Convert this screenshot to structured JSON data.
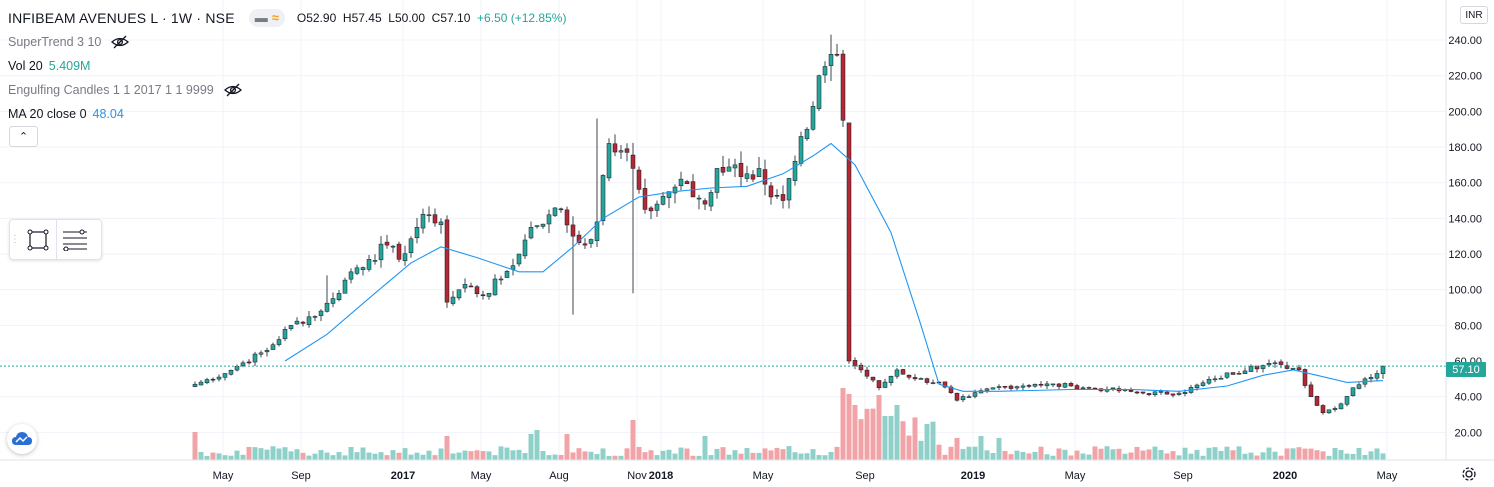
{
  "legend": {
    "symbol": "INFIBEAM AVENUES L · 1W · NSE",
    "ohlc": {
      "open": "O52.90",
      "high": "H57.45",
      "low": "L50.00",
      "close": "C57.10",
      "change": "+6.50 (+12.85%)"
    },
    "indicators": [
      {
        "name": "SuperTrend 3 10",
        "value": "",
        "hidden": true
      },
      {
        "name": "Vol 20",
        "value": "5.409M",
        "hidden": false
      },
      {
        "name": "Engulfing Candles 1 1 2017 1 1 9999",
        "value": "",
        "hidden": true
      },
      {
        "name": "MA 20 close 0",
        "value": "48.04",
        "hidden": false
      }
    ]
  },
  "currency": "INR",
  "last_price_label": "57.10",
  "colors": {
    "up": "#26a69a",
    "down": "#b22833",
    "vol_up": "#8fd1c9",
    "vol_down": "#f2a3a7",
    "ma": "#2196f3",
    "grid": "#f0f3fa",
    "axis_text": "#131722"
  },
  "icons": {
    "eye_off": "eye-off-icon",
    "collapse": "chevron-up-icon",
    "rectangle_tool": "rectangle-icon",
    "lines_tool": "fib-lines-icon",
    "logo": "tradingview-cloud-icon",
    "settings": "gear-icon"
  },
  "chart_data": {
    "type": "candlestick",
    "interval": "1W",
    "y_axis": {
      "min": 0,
      "max": 250,
      "ticks": [
        20,
        40,
        60,
        80,
        100,
        120,
        140,
        160,
        180,
        200,
        220,
        240
      ],
      "labels": [
        "20.00",
        "40.00",
        "60.00",
        "80.00",
        "100.00",
        "120.00",
        "140.00",
        "160.00",
        "180.00",
        "200.00",
        "220.00",
        "240.00"
      ]
    },
    "x_axis": {
      "start_week": 0,
      "end_week": 212,
      "ticks": [
        {
          "week": 1,
          "label": "May"
        },
        {
          "week": 14,
          "label": "Sep"
        },
        {
          "week": 31,
          "label": "2017"
        },
        {
          "week": 44,
          "label": "May"
        },
        {
          "week": 57,
          "label": "Aug"
        },
        {
          "week": 70,
          "label": "Nov"
        },
        {
          "week": 74,
          "label": "2018"
        },
        {
          "week": 91,
          "label": "May"
        },
        {
          "week": 108,
          "label": "Sep"
        },
        {
          "week": 126,
          "label": "2019"
        },
        {
          "week": 143,
          "label": "May"
        },
        {
          "week": 161,
          "label": "Sep"
        },
        {
          "week": 178,
          "label": "2020"
        },
        {
          "week": 195,
          "label": "May"
        }
      ]
    },
    "price_anchors": [
      {
        "week": 0,
        "close": 47
      },
      {
        "week": 5,
        "close": 53
      },
      {
        "week": 8,
        "close": 59
      },
      {
        "week": 12,
        "close": 66
      },
      {
        "week": 16,
        "close": 80
      },
      {
        "week": 21,
        "close": 88
      },
      {
        "week": 23,
        "close": 95
      },
      {
        "week": 26,
        "close": 110
      },
      {
        "week": 29,
        "close": 117
      },
      {
        "week": 32,
        "close": 125
      },
      {
        "week": 34,
        "close": 117
      },
      {
        "week": 37,
        "close": 135
      },
      {
        "week": 39,
        "close": 142
      },
      {
        "week": 41,
        "close": 138
      },
      {
        "week": 42,
        "close": 93
      },
      {
        "week": 45,
        "close": 103
      },
      {
        "week": 48,
        "close": 97
      },
      {
        "week": 51,
        "close": 106
      },
      {
        "week": 54,
        "close": 120
      },
      {
        "week": 56,
        "close": 135
      },
      {
        "week": 59,
        "close": 142
      },
      {
        "week": 61,
        "close": 145
      },
      {
        "week": 63,
        "close": 130
      },
      {
        "week": 65,
        "close": 125
      },
      {
        "week": 67,
        "close": 138
      },
      {
        "week": 69,
        "close": 182
      },
      {
        "week": 71,
        "close": 178
      },
      {
        "week": 73,
        "close": 168
      },
      {
        "week": 75,
        "close": 145
      },
      {
        "week": 77,
        "close": 148
      },
      {
        "week": 79,
        "close": 155
      },
      {
        "week": 81,
        "close": 162
      },
      {
        "week": 83,
        "close": 152
      },
      {
        "week": 85,
        "close": 148
      },
      {
        "week": 87,
        "close": 168
      },
      {
        "week": 90,
        "close": 170
      },
      {
        "week": 92,
        "close": 165
      },
      {
        "week": 94,
        "close": 168
      },
      {
        "week": 96,
        "close": 152
      },
      {
        "week": 98,
        "close": 150
      },
      {
        "week": 100,
        "close": 172
      },
      {
        "week": 102,
        "close": 190
      },
      {
        "week": 104,
        "close": 220
      },
      {
        "week": 106,
        "close": 232
      },
      {
        "week": 107,
        "close": 232
      },
      {
        "week": 108,
        "close": 195
      },
      {
        "week": 109,
        "close": 60
      },
      {
        "week": 111,
        "close": 55
      },
      {
        "week": 114,
        "close": 45
      },
      {
        "week": 117,
        "close": 55
      },
      {
        "week": 120,
        "close": 50
      },
      {
        "week": 124,
        "close": 48
      },
      {
        "week": 127,
        "close": 38
      },
      {
        "week": 129,
        "close": 40
      },
      {
        "week": 133,
        "close": 45
      },
      {
        "week": 140,
        "close": 47
      },
      {
        "week": 146,
        "close": 46
      },
      {
        "week": 152,
        "close": 44
      },
      {
        "week": 158,
        "close": 42
      },
      {
        "week": 164,
        "close": 42
      },
      {
        "week": 170,
        "close": 50
      },
      {
        "week": 176,
        "close": 57
      },
      {
        "week": 181,
        "close": 58
      },
      {
        "week": 184,
        "close": 55
      },
      {
        "week": 186,
        "close": 40
      },
      {
        "week": 188,
        "close": 31
      },
      {
        "week": 191,
        "close": 36
      },
      {
        "week": 193,
        "close": 45
      },
      {
        "week": 195,
        "close": 50
      },
      {
        "week": 197,
        "close": 53
      },
      {
        "week": 198,
        "close": 57.1
      }
    ],
    "spikes": [
      {
        "week": 22,
        "high": 108
      },
      {
        "week": 67,
        "high": 196
      },
      {
        "week": 73,
        "low": 98
      },
      {
        "week": 63,
        "low": 86
      },
      {
        "week": 106,
        "high": 243
      },
      {
        "week": 109,
        "high": 80
      }
    ],
    "ma_line": [
      {
        "week": 15,
        "value": 60
      },
      {
        "week": 22,
        "value": 75
      },
      {
        "week": 30,
        "value": 98
      },
      {
        "week": 36,
        "value": 115
      },
      {
        "week": 41,
        "value": 124
      },
      {
        "week": 47,
        "value": 118
      },
      {
        "week": 54,
        "value": 110
      },
      {
        "week": 58,
        "value": 110
      },
      {
        "week": 63,
        "value": 124
      },
      {
        "week": 68,
        "value": 140
      },
      {
        "week": 74,
        "value": 152
      },
      {
        "week": 80,
        "value": 155
      },
      {
        "week": 86,
        "value": 157
      },
      {
        "week": 92,
        "value": 158
      },
      {
        "week": 98,
        "value": 165
      },
      {
        "week": 103,
        "value": 175
      },
      {
        "week": 106,
        "value": 182
      },
      {
        "week": 110,
        "value": 170
      },
      {
        "week": 116,
        "value": 132
      },
      {
        "week": 121,
        "value": 80
      },
      {
        "week": 124,
        "value": 47
      },
      {
        "week": 128,
        "value": 43
      },
      {
        "week": 134,
        "value": 43
      },
      {
        "week": 146,
        "value": 44
      },
      {
        "week": 156,
        "value": 44
      },
      {
        "week": 164,
        "value": 43
      },
      {
        "week": 172,
        "value": 46
      },
      {
        "week": 178,
        "value": 52
      },
      {
        "week": 183,
        "value": 55
      },
      {
        "week": 187,
        "value": 52
      },
      {
        "week": 192,
        "value": 48
      },
      {
        "week": 198,
        "value": 49
      }
    ],
    "volume_spikes": [
      {
        "week": 0,
        "height": 28,
        "up": false
      },
      {
        "week": 42,
        "height": 24,
        "up": false
      },
      {
        "week": 56,
        "height": 26,
        "up": true
      },
      {
        "week": 57,
        "height": 30,
        "up": true
      },
      {
        "week": 62,
        "height": 26,
        "up": false
      },
      {
        "week": 73,
        "height": 40,
        "up": false
      },
      {
        "week": 85,
        "height": 24,
        "up": true
      },
      {
        "week": 108,
        "height": 72,
        "up": false
      },
      {
        "week": 109,
        "height": 66,
        "up": false
      },
      {
        "week": 110,
        "height": 55,
        "up": false
      },
      {
        "week": 114,
        "height": 65,
        "up": false
      },
      {
        "week": 117,
        "height": 55,
        "up": true
      },
      {
        "week": 122,
        "height": 36,
        "up": true
      },
      {
        "week": 127,
        "height": 22,
        "up": false
      },
      {
        "week": 131,
        "height": 24,
        "up": true
      },
      {
        "week": 134,
        "height": 22,
        "up": true
      }
    ]
  }
}
